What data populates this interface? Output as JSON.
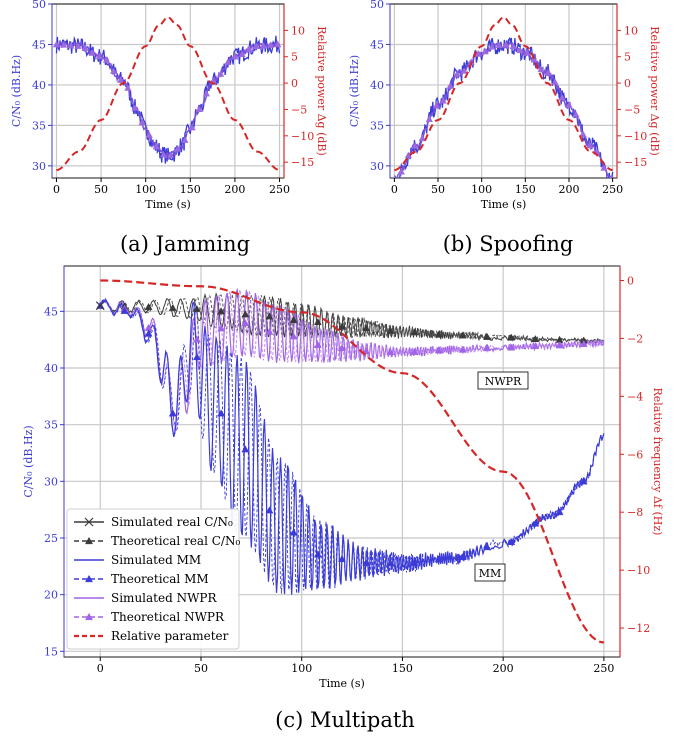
{
  "chart_data": [
    {
      "type": "line",
      "caption": "(a) Jamming",
      "xlabel": "Time (s)",
      "ylabel_left": "C/N₀ (dB.Hz)",
      "ylabel_right": "Relative power Δg (dB)",
      "xlim": [
        -5,
        255
      ],
      "ylim_left": [
        28.5,
        50
      ],
      "ylim_right": [
        -18,
        15
      ],
      "xticks": [
        0,
        50,
        100,
        150,
        200,
        250
      ],
      "yticks_left": [
        30,
        35,
        40,
        45,
        50
      ],
      "yticks_right": [
        -15,
        -10,
        -5,
        0,
        5,
        10
      ],
      "grid": true,
      "series": [
        {
          "role": "cn0",
          "axis": "left",
          "color": "#3b3bd6",
          "style": "noisy",
          "x": [
            0,
            25,
            50,
            75,
            90,
            100,
            110,
            120,
            125,
            130,
            140,
            150,
            160,
            175,
            200,
            225,
            250
          ],
          "values": [
            45,
            44.8,
            43.5,
            40.5,
            37,
            34.5,
            32.5,
            31.4,
            31.2,
            31.4,
            32.5,
            34.5,
            37,
            40.5,
            43.5,
            44.8,
            45
          ]
        },
        {
          "role": "theory",
          "axis": "left",
          "color": "#9c6ae0",
          "style": "triangles",
          "x": [
            0,
            25,
            50,
            75,
            90,
            100,
            110,
            120,
            125,
            130,
            140,
            150,
            160,
            175,
            200,
            225,
            250
          ],
          "values": [
            45,
            44.8,
            43.5,
            40.5,
            37,
            34.5,
            32.5,
            31.4,
            31.2,
            31.4,
            32.5,
            34.5,
            37,
            40.5,
            43.5,
            44.8,
            45
          ]
        },
        {
          "role": "param",
          "axis": "right",
          "color": "#d62728",
          "style": "dashed",
          "x": [
            0,
            25,
            50,
            75,
            100,
            115,
            125,
            135,
            150,
            175,
            200,
            225,
            250
          ],
          "values": [
            -16.5,
            -13,
            -7,
            0,
            7,
            11,
            12.5,
            11,
            7,
            0,
            -7,
            -13,
            -16.5
          ]
        }
      ]
    },
    {
      "type": "line",
      "caption": "(b) Spoofing",
      "xlabel": "Time (s)",
      "ylabel_left": "C/N₀ (dB.Hz)",
      "ylabel_right": "Relative power Δg (dB)",
      "xlim": [
        -5,
        255
      ],
      "ylim_left": [
        28.5,
        50
      ],
      "ylim_right": [
        -18,
        15
      ],
      "xticks": [
        0,
        50,
        100,
        150,
        200,
        250
      ],
      "yticks_left": [
        30,
        35,
        40,
        45,
        50
      ],
      "yticks_right": [
        -15,
        -10,
        -5,
        0,
        5,
        10
      ],
      "grid": true,
      "series": [
        {
          "role": "cn0",
          "axis": "left",
          "color": "#3b3bd6",
          "style": "noisy",
          "x": [
            0,
            25,
            50,
            75,
            100,
            115,
            125,
            135,
            150,
            175,
            200,
            225,
            250
          ],
          "values": [
            28.3,
            32.5,
            37.5,
            41.5,
            44,
            44.8,
            45,
            44.8,
            44,
            41.5,
            37.5,
            32.5,
            28.3
          ]
        },
        {
          "role": "theory",
          "axis": "left",
          "color": "#9c6ae0",
          "style": "triangles",
          "x": [
            0,
            25,
            50,
            75,
            100,
            115,
            125,
            135,
            150,
            175,
            200,
            225,
            250
          ],
          "values": [
            28.3,
            32.5,
            37.5,
            41.5,
            44,
            44.8,
            45,
            44.8,
            44,
            41.5,
            37.5,
            32.5,
            28.3
          ]
        },
        {
          "role": "param",
          "axis": "right",
          "color": "#d62728",
          "style": "dashed",
          "x": [
            0,
            25,
            50,
            75,
            100,
            115,
            125,
            135,
            150,
            175,
            200,
            225,
            250
          ],
          "values": [
            -16.5,
            -13,
            -7,
            0,
            7,
            11,
            12.5,
            11,
            7,
            0,
            -7,
            -13,
            -16.5
          ]
        }
      ]
    },
    {
      "type": "line",
      "caption": "(c) Multipath",
      "xlabel": "Time (s)",
      "ylabel_left": "C/N₀ (dB.Hz)",
      "ylabel_right": "Relative frequency Δf (Hz)",
      "xlim": [
        -18,
        258
      ],
      "ylim_left": [
        14.5,
        49
      ],
      "ylim_right": [
        -13,
        0.5
      ],
      "xticks": [
        0,
        50,
        100,
        150,
        200,
        250
      ],
      "yticks_left": [
        15,
        20,
        25,
        30,
        35,
        40,
        45
      ],
      "yticks_right": [
        0,
        -2,
        -4,
        -6,
        -8,
        -10,
        -12
      ],
      "grid": true,
      "annotations": [
        "NWPR",
        "MM"
      ],
      "legend": {
        "placement": "lower-left",
        "entries": [
          {
            "label": "Simulated real C/N₀",
            "color": "#3a3a3a",
            "marker": "x",
            "dash": false
          },
          {
            "label": "Theoretical real C/N₀",
            "color": "#3a3a3a",
            "marker": "triangle",
            "dash": true
          },
          {
            "label": "Simulated MM",
            "color": "#3b3bd6",
            "marker": "",
            "dash": false
          },
          {
            "label": "Theoretical MM",
            "color": "#3b3bd6",
            "marker": "triangle",
            "dash": true
          },
          {
            "label": "Simulated NWPR",
            "color": "#a064e6",
            "marker": "",
            "dash": false
          },
          {
            "label": "Theoretical NWPR",
            "color": "#a064e6",
            "marker": "triangle",
            "dash": true
          },
          {
            "label": "Relative parameter",
            "color": "#d62728",
            "marker": "",
            "dash": true
          }
        ]
      },
      "series": [
        {
          "role": "real",
          "axis": "left",
          "color": "#3a3a3a",
          "x": [
            0,
            20,
            40,
            60,
            80,
            100,
            125,
            150,
            175,
            200,
            225,
            250
          ],
          "center": [
            45.5,
            45.4,
            45.3,
            45,
            44.6,
            44.2,
            43.6,
            43.2,
            42.9,
            42.7,
            42.5,
            42.4
          ],
          "amplitude": [
            0.4,
            0.5,
            0.8,
            1.5,
            1.8,
            1.5,
            0.9,
            0.5,
            0.3,
            0.2,
            0.1,
            0.1
          ]
        },
        {
          "role": "mm",
          "axis": "left",
          "color": "#3b3bd6",
          "x": [
            0,
            15,
            25,
            32,
            36,
            40,
            45,
            55,
            70,
            90,
            110,
            130,
            150,
            175,
            200,
            225,
            240,
            250
          ],
          "center": [
            45.5,
            45,
            43,
            40,
            36,
            38,
            42,
            37,
            33,
            26,
            23.5,
            22.8,
            22.8,
            23.2,
            24.5,
            27,
            30,
            34
          ],
          "amplitude": [
            0.5,
            0.5,
            1,
            2,
            2,
            3,
            4,
            6,
            8,
            6,
            3,
            1.5,
            0.8,
            0.5,
            0.3,
            0.3,
            0.3,
            0.3
          ]
        },
        {
          "role": "nwpr",
          "axis": "left",
          "color": "#a064e6",
          "x": [
            0,
            15,
            25,
            32,
            36,
            40,
            50,
            70,
            90,
            110,
            130,
            150,
            175,
            200,
            225,
            250
          ],
          "center": [
            45.5,
            45.2,
            43.5,
            40,
            36,
            38,
            43,
            44,
            43,
            42,
            41.5,
            41.4,
            41.6,
            41.8,
            42,
            42.2
          ],
          "amplitude": [
            0.4,
            0.5,
            1,
            2,
            2,
            3,
            3,
            3,
            2.5,
            1.5,
            0.8,
            0.4,
            0.3,
            0.2,
            0.2,
            0.2
          ]
        },
        {
          "role": "param",
          "axis": "right",
          "color": "#d62728",
          "style": "dashed",
          "x": [
            0,
            50,
            100,
            150,
            200,
            250
          ],
          "values": [
            0,
            -0.2,
            -1.1,
            -3.2,
            -6.6,
            -12.5
          ]
        }
      ]
    }
  ],
  "labels": {
    "nwpr": "NWPR",
    "mm": "MM"
  }
}
